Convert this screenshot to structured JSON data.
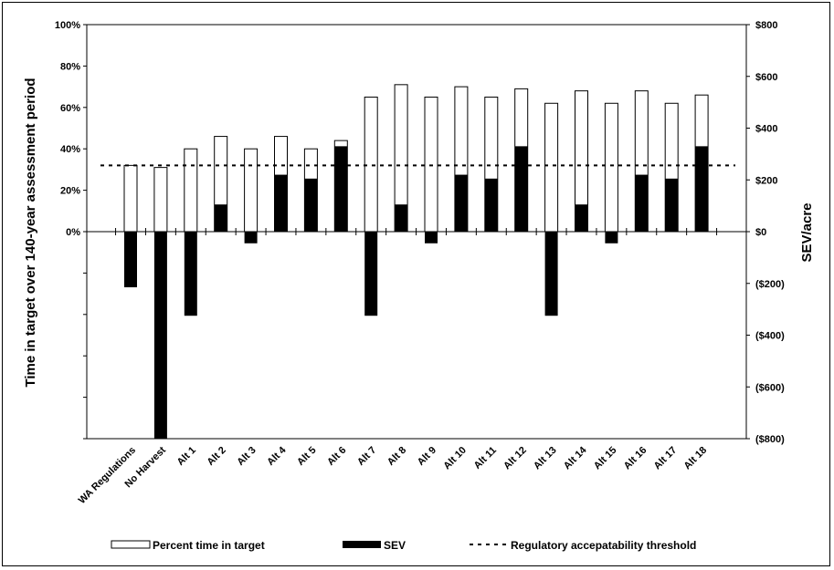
{
  "chart_data": {
    "type": "bar",
    "categories": [
      "WA Regulations",
      "No Harvest",
      "Alt 1",
      "Alt 2",
      "Alt 3",
      "Alt 4",
      "Alt 5",
      "Alt 6",
      "Alt 7",
      "Alt 8",
      "Alt 9",
      "Alt 10",
      "Alt 11",
      "Alt 12",
      "Alt 13",
      "Alt 14",
      "Alt 15",
      "Alt 16",
      "Alt 17",
      "Alt 18"
    ],
    "series": [
      {
        "name": "Percent time in target",
        "axis": "left",
        "style": "hollow-bar",
        "values": [
          32,
          31,
          40,
          46,
          40,
          46,
          40,
          44,
          65,
          71,
          65,
          70,
          65,
          69,
          62,
          68,
          62,
          68,
          62,
          66
        ]
      },
      {
        "name": "SEV",
        "axis": "right",
        "style": "filled-bar",
        "values": [
          -215,
          -800,
          -325,
          105,
          -45,
          220,
          205,
          330,
          -325,
          105,
          -45,
          220,
          205,
          330,
          -325,
          105,
          -45,
          220,
          205,
          330
        ]
      },
      {
        "name": "Regulatory accepatability threshold",
        "axis": "left",
        "style": "dashed-line",
        "value": 32
      }
    ],
    "ylabel": "Time in target over 140-year assessment period",
    "y2label": "SEV/acre",
    "ylim": [
      -100,
      100
    ],
    "y2lim": [
      -800,
      800
    ],
    "y_ticks": [
      "100%",
      "80%",
      "60%",
      "40%",
      "20%",
      "0%"
    ],
    "y2_ticks": [
      "$800",
      "$600",
      "$400",
      "$200",
      "$0",
      "($200)",
      "($400)",
      "($600)",
      "($800)"
    ],
    "grid": false,
    "legend": "bottom"
  },
  "colors": {
    "hollow_fill": "#ffffff",
    "bar_stroke": "#000000",
    "sev_fill": "#000000",
    "threshold_line": "#000000"
  }
}
